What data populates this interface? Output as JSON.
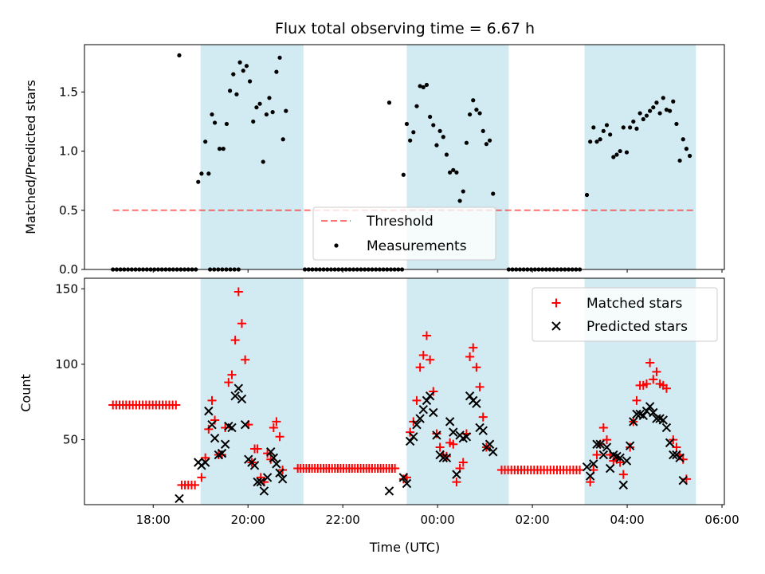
{
  "chart_data": {
    "type": "scatter",
    "title": "Flux total observing time = 6.67 h",
    "xlabel": "Time (UTC)",
    "x_unit": "hours since 00:00 UTC",
    "x_ticks": [
      {
        "value": -6,
        "label": "18:00"
      },
      {
        "value": -4,
        "label": "20:00"
      },
      {
        "value": -2,
        "label": "22:00"
      },
      {
        "value": 0,
        "label": "00:00"
      },
      {
        "value": 2,
        "label": "02:00"
      },
      {
        "value": 4,
        "label": "04:00"
      },
      {
        "value": 6,
        "label": "06:00"
      }
    ],
    "xlim": [
      -7.45,
      6.05
    ],
    "colors": {
      "band": "#add8e6",
      "threshold": "#ff0000",
      "matched": "#ff0000",
      "predicted": "#000000",
      "measurement": "#000000"
    },
    "observing_windows": [
      [
        -5.0,
        -2.83
      ],
      [
        -0.65,
        1.5
      ],
      [
        3.1,
        5.45
      ]
    ],
    "top_panel": {
      "ylabel": "Matched/Predicted stars",
      "ylim": [
        0,
        1.9
      ],
      "y_ticks": [
        0.0,
        0.5,
        1.0,
        1.5
      ],
      "y_tick_labels": [
        "0.0",
        "0.5",
        "1.0",
        "1.5"
      ],
      "threshold": {
        "value": 0.5,
        "x_range": [
          -6.85,
          5.45
        ],
        "label": "Threshold"
      },
      "measurements": {
        "label": "Measurements",
        "zero_runs": [
          [
            -6.85,
            -5.1,
            0.08
          ],
          [
            -4.8,
            -4.2,
            0.08
          ],
          [
            -2.8,
            -0.75,
            0.08
          ],
          [
            1.5,
            3.0,
            0.08
          ]
        ],
        "points": [
          [
            -5.45,
            1.81
          ],
          [
            -5.05,
            0.74
          ],
          [
            -4.98,
            0.81
          ],
          [
            -4.9,
            1.08
          ],
          [
            -4.83,
            0.81
          ],
          [
            -4.76,
            1.31
          ],
          [
            -4.7,
            1.24
          ],
          [
            -4.6,
            1.02
          ],
          [
            -4.52,
            1.02
          ],
          [
            -4.45,
            1.23
          ],
          [
            -4.38,
            1.51
          ],
          [
            -4.31,
            1.65
          ],
          [
            -4.24,
            1.48
          ],
          [
            -4.17,
            1.75
          ],
          [
            -4.1,
            1.68
          ],
          [
            -4.03,
            1.72
          ],
          [
            -3.96,
            1.59
          ],
          [
            -3.89,
            1.25
          ],
          [
            -3.82,
            1.37
          ],
          [
            -3.75,
            1.4
          ],
          [
            -3.68,
            0.91
          ],
          [
            -3.61,
            1.31
          ],
          [
            -3.55,
            1.45
          ],
          [
            -3.48,
            1.33
          ],
          [
            -3.4,
            1.67
          ],
          [
            -3.33,
            1.79
          ],
          [
            -3.26,
            1.1
          ],
          [
            -3.2,
            1.34
          ],
          [
            -1.02,
            1.41
          ],
          [
            -0.72,
            0.8
          ],
          [
            -0.65,
            1.23
          ],
          [
            -0.58,
            1.09
          ],
          [
            -0.51,
            1.16
          ],
          [
            -0.44,
            1.38
          ],
          [
            -0.37,
            1.55
          ],
          [
            -0.3,
            1.54
          ],
          [
            -0.23,
            1.56
          ],
          [
            -0.16,
            1.29
          ],
          [
            -0.09,
            1.22
          ],
          [
            -0.02,
            1.05
          ],
          [
            0.05,
            1.17
          ],
          [
            0.12,
            1.12
          ],
          [
            0.19,
            0.97
          ],
          [
            0.26,
            0.82
          ],
          [
            0.33,
            0.84
          ],
          [
            0.4,
            0.82
          ],
          [
            0.47,
            0.58
          ],
          [
            0.54,
            0.66
          ],
          [
            0.61,
            1.07
          ],
          [
            0.68,
            1.31
          ],
          [
            0.75,
            1.43
          ],
          [
            0.82,
            1.35
          ],
          [
            0.89,
            1.32
          ],
          [
            0.96,
            1.17
          ],
          [
            1.03,
            1.06
          ],
          [
            1.1,
            1.09
          ],
          [
            1.17,
            0.64
          ],
          [
            3.15,
            0.63
          ],
          [
            3.22,
            1.08
          ],
          [
            3.29,
            1.2
          ],
          [
            3.36,
            1.08
          ],
          [
            3.43,
            1.1
          ],
          [
            3.5,
            1.17
          ],
          [
            3.57,
            1.22
          ],
          [
            3.64,
            1.14
          ],
          [
            3.71,
            0.95
          ],
          [
            3.78,
            0.97
          ],
          [
            3.85,
            1.0
          ],
          [
            3.92,
            1.2
          ],
          [
            3.99,
            0.99
          ],
          [
            4.06,
            1.2
          ],
          [
            4.13,
            1.25
          ],
          [
            4.2,
            1.19
          ],
          [
            4.27,
            1.32
          ],
          [
            4.34,
            1.27
          ],
          [
            4.41,
            1.3
          ],
          [
            4.48,
            1.34
          ],
          [
            4.55,
            1.37
          ],
          [
            4.62,
            1.41
          ],
          [
            4.69,
            1.32
          ],
          [
            4.76,
            1.45
          ],
          [
            4.83,
            1.35
          ],
          [
            4.9,
            1.34
          ],
          [
            4.97,
            1.42
          ],
          [
            5.04,
            1.23
          ],
          [
            5.11,
            0.92
          ],
          [
            5.18,
            1.1
          ],
          [
            5.25,
            1.02
          ],
          [
            5.32,
            0.96
          ]
        ]
      }
    },
    "bottom_panel": {
      "ylabel": "Count",
      "ylim": [
        7,
        157
      ],
      "y_ticks": [
        50,
        100,
        150
      ],
      "y_tick_labels": [
        "50",
        "100",
        "150"
      ],
      "series": [
        {
          "name": "Matched stars",
          "marker": "plus",
          "runs": [
            [
              -6.85,
              -5.52,
              20,
              73
            ],
            [
              -5.4,
              -5.12,
              5,
              20
            ],
            [
              -2.95,
              -0.9,
              35,
              31
            ],
            [
              1.35,
              3.0,
              25,
              30
            ]
          ],
          "points": [
            [
              -4.98,
              25
            ],
            [
              -4.9,
              38
            ],
            [
              -4.83,
              57
            ],
            [
              -4.76,
              76
            ],
            [
              -4.7,
              63
            ],
            [
              -4.62,
              40
            ],
            [
              -4.55,
              40
            ],
            [
              -4.48,
              58
            ],
            [
              -4.41,
              88
            ],
            [
              -4.34,
              93
            ],
            [
              -4.27,
              116
            ],
            [
              -4.2,
              148
            ],
            [
              -4.13,
              127
            ],
            [
              -4.06,
              103
            ],
            [
              -3.99,
              60
            ],
            [
              -3.92,
              35
            ],
            [
              -3.86,
              44
            ],
            [
              -3.8,
              44
            ],
            [
              -3.73,
              25
            ],
            [
              -3.66,
              22
            ],
            [
              -3.59,
              41
            ],
            [
              -3.52,
              37
            ],
            [
              -3.46,
              58
            ],
            [
              -3.4,
              62
            ],
            [
              -3.33,
              52
            ],
            [
              -3.27,
              30
            ],
            [
              -0.72,
              24
            ],
            [
              -0.65,
              25
            ],
            [
              -0.58,
              55
            ],
            [
              -0.51,
              62
            ],
            [
              -0.44,
              76
            ],
            [
              -0.37,
              98
            ],
            [
              -0.3,
              106
            ],
            [
              -0.23,
              119
            ],
            [
              -0.16,
              103
            ],
            [
              -0.09,
              82
            ],
            [
              -0.02,
              54
            ],
            [
              0.05,
              45
            ],
            [
              0.12,
              40
            ],
            [
              0.19,
              39
            ],
            [
              0.26,
              48
            ],
            [
              0.33,
              47
            ],
            [
              0.4,
              22
            ],
            [
              0.47,
              31
            ],
            [
              0.54,
              35
            ],
            [
              0.61,
              54
            ],
            [
              0.68,
              105
            ],
            [
              0.75,
              111
            ],
            [
              0.82,
              98
            ],
            [
              0.89,
              85
            ],
            [
              0.96,
              65
            ],
            [
              1.03,
              45
            ],
            [
              3.22,
              22
            ],
            [
              3.29,
              30
            ],
            [
              3.36,
              40
            ],
            [
              3.43,
              47
            ],
            [
              3.5,
              58
            ],
            [
              3.57,
              50
            ],
            [
              3.64,
              40
            ],
            [
              3.71,
              36
            ],
            [
              3.78,
              37
            ],
            [
              3.85,
              35
            ],
            [
              3.92,
              27
            ],
            [
              4.06,
              45
            ],
            [
              4.13,
              62
            ],
            [
              4.2,
              76
            ],
            [
              4.27,
              86
            ],
            [
              4.34,
              86
            ],
            [
              4.41,
              87
            ],
            [
              4.48,
              101
            ],
            [
              4.55,
              90
            ],
            [
              4.62,
              95
            ],
            [
              4.69,
              87
            ],
            [
              4.76,
              86
            ],
            [
              4.83,
              84
            ],
            [
              4.97,
              50
            ],
            [
              5.04,
              45
            ],
            [
              5.11,
              40
            ],
            [
              5.18,
              37
            ],
            [
              5.25,
              24
            ]
          ]
        },
        {
          "name": "Predicted stars",
          "marker": "x",
          "points": [
            [
              -5.45,
              11
            ],
            [
              -5.05,
              35
            ],
            [
              -4.98,
              33
            ],
            [
              -4.9,
              35
            ],
            [
              -4.83,
              69
            ],
            [
              -4.76,
              60
            ],
            [
              -4.7,
              51
            ],
            [
              -4.62,
              40
            ],
            [
              -4.55,
              41
            ],
            [
              -4.48,
              47
            ],
            [
              -4.41,
              59
            ],
            [
              -4.34,
              58
            ],
            [
              -4.27,
              79
            ],
            [
              -4.2,
              84
            ],
            [
              -4.13,
              77
            ],
            [
              -4.06,
              60
            ],
            [
              -3.99,
              37
            ],
            [
              -3.92,
              35
            ],
            [
              -3.86,
              33
            ],
            [
              -3.8,
              22
            ],
            [
              -3.73,
              22
            ],
            [
              -3.66,
              16
            ],
            [
              -3.59,
              25
            ],
            [
              -3.52,
              42
            ],
            [
              -3.46,
              38
            ],
            [
              -3.4,
              34
            ],
            [
              -3.33,
              28
            ],
            [
              -3.27,
              24
            ],
            [
              -1.02,
              16
            ],
            [
              -0.72,
              25
            ],
            [
              -0.65,
              21
            ],
            [
              -0.58,
              49
            ],
            [
              -0.51,
              52
            ],
            [
              -0.44,
              60
            ],
            [
              -0.37,
              64
            ],
            [
              -0.3,
              70
            ],
            [
              -0.23,
              76
            ],
            [
              -0.16,
              79
            ],
            [
              -0.09,
              68
            ],
            [
              -0.02,
              53
            ],
            [
              0.05,
              40
            ],
            [
              0.12,
              38
            ],
            [
              0.19,
              38
            ],
            [
              0.26,
              62
            ],
            [
              0.33,
              55
            ],
            [
              0.4,
              27
            ],
            [
              0.47,
              53
            ],
            [
              0.54,
              51
            ],
            [
              0.61,
              52
            ],
            [
              0.68,
              79
            ],
            [
              0.75,
              76
            ],
            [
              0.82,
              74
            ],
            [
              0.89,
              58
            ],
            [
              0.96,
              56
            ],
            [
              1.03,
              45
            ],
            [
              1.1,
              47
            ],
            [
              1.17,
              42
            ],
            [
              3.15,
              32
            ],
            [
              3.22,
              26
            ],
            [
              3.29,
              34
            ],
            [
              3.36,
              47
            ],
            [
              3.43,
              47
            ],
            [
              3.5,
              40
            ],
            [
              3.57,
              45
            ],
            [
              3.64,
              31
            ],
            [
              3.71,
              40
            ],
            [
              3.78,
              39
            ],
            [
              3.85,
              38
            ],
            [
              3.92,
              20
            ],
            [
              3.99,
              36
            ],
            [
              4.06,
              46
            ],
            [
              4.13,
              62
            ],
            [
              4.2,
              67
            ],
            [
              4.27,
              67
            ],
            [
              4.34,
              66
            ],
            [
              4.41,
              69
            ],
            [
              4.48,
              72
            ],
            [
              4.55,
              68
            ],
            [
              4.62,
              64
            ],
            [
              4.69,
              64
            ],
            [
              4.76,
              63
            ],
            [
              4.83,
              58
            ],
            [
              4.9,
              48
            ],
            [
              4.97,
              40
            ],
            [
              5.04,
              40
            ],
            [
              5.11,
              38
            ],
            [
              5.18,
              23
            ]
          ]
        }
      ]
    }
  }
}
